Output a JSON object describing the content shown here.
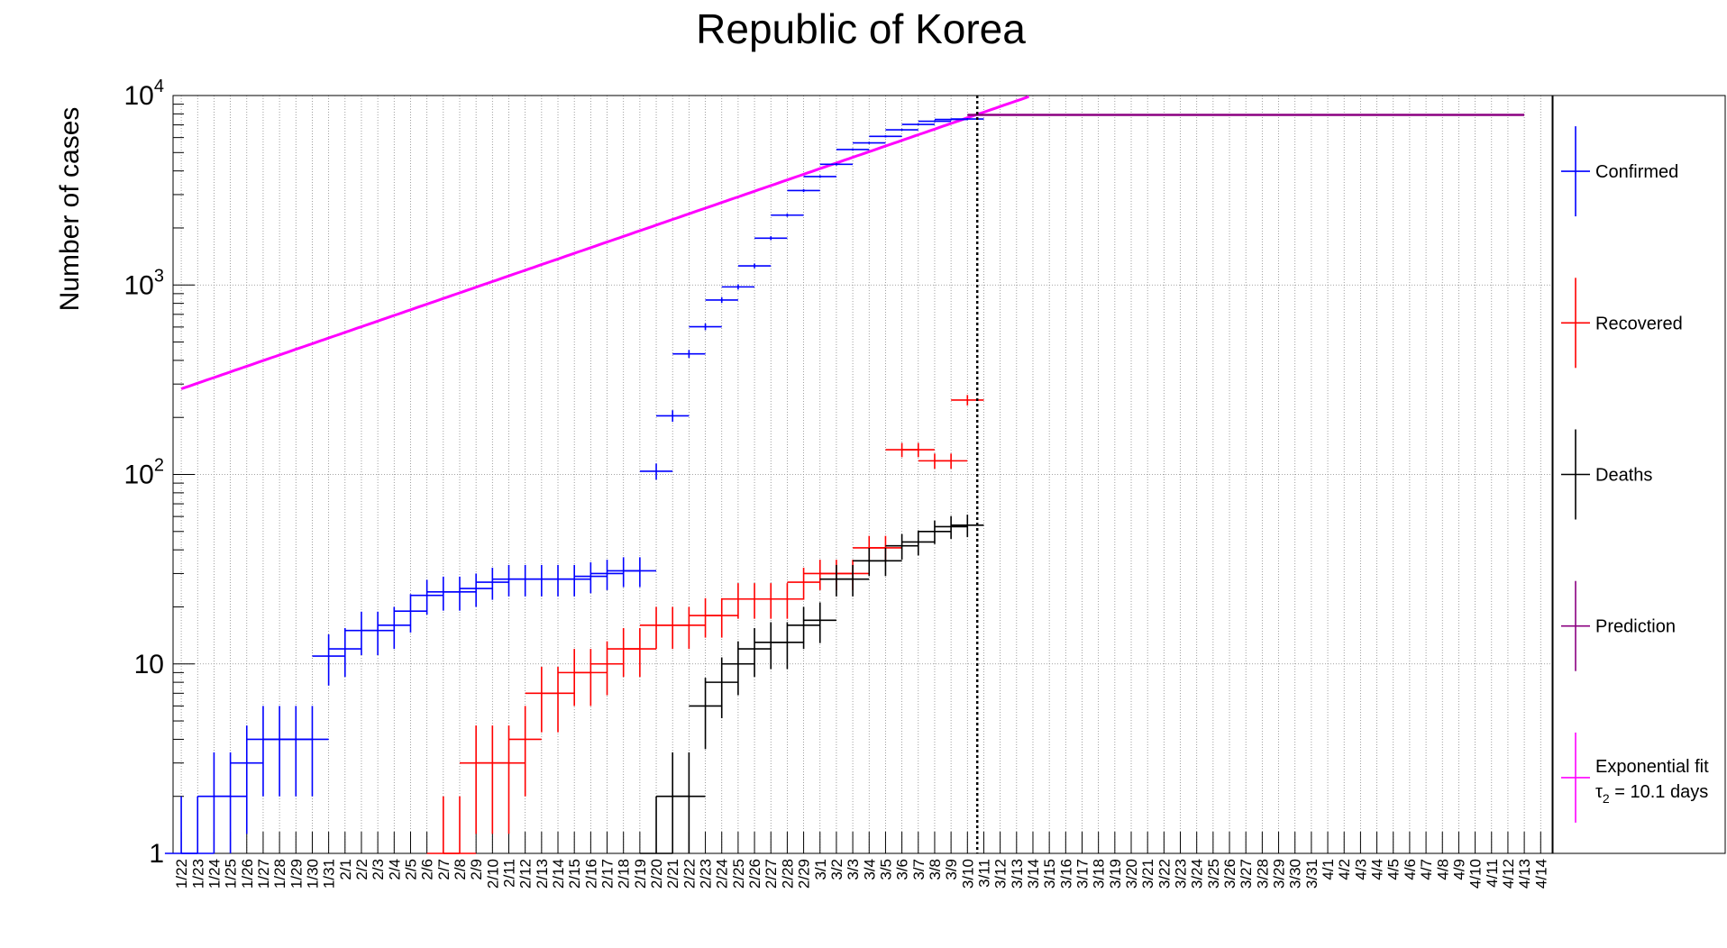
{
  "chart_data": {
    "type": "scatter",
    "title": "Republic of Korea",
    "ylabel": "Number of cases",
    "xlabel": "",
    "yscale": "log",
    "ylim": [
      1,
      10000
    ],
    "y_tick_labels": [
      {
        "value": 1,
        "label": "1"
      },
      {
        "value": 10,
        "label": "10"
      },
      {
        "value": 100,
        "label": "10",
        "exp": "2"
      },
      {
        "value": 1000,
        "label": "10",
        "exp": "3"
      },
      {
        "value": 10000,
        "label": "10",
        "exp": "4"
      }
    ],
    "grid": true,
    "categories": [
      "1/22",
      "1/23",
      "1/24",
      "1/25",
      "1/26",
      "1/27",
      "1/28",
      "1/29",
      "1/30",
      "1/31",
      "2/1",
      "2/2",
      "2/3",
      "2/4",
      "2/5",
      "2/6",
      "2/7",
      "2/8",
      "2/9",
      "2/10",
      "2/11",
      "2/12",
      "2/13",
      "2/14",
      "2/15",
      "2/16",
      "2/17",
      "2/18",
      "2/19",
      "2/20",
      "2/21",
      "2/22",
      "2/23",
      "2/24",
      "2/25",
      "2/26",
      "2/27",
      "2/28",
      "2/29",
      "3/1",
      "3/2",
      "3/3",
      "3/4",
      "3/5",
      "3/6",
      "3/7",
      "3/8",
      "3/9",
      "3/10",
      "3/11",
      "3/12",
      "3/13",
      "3/14",
      "3/15",
      "3/16",
      "3/17",
      "3/18",
      "3/19",
      "3/20",
      "3/21",
      "3/22",
      "3/23",
      "3/24",
      "3/25",
      "3/26",
      "3/27",
      "3/28",
      "3/29",
      "3/30",
      "3/31",
      "4/1",
      "4/2",
      "4/3",
      "4/4",
      "4/5",
      "4/6",
      "4/7",
      "4/8",
      "4/9",
      "4/10",
      "4/11",
      "4/12",
      "4/13",
      "4/14"
    ],
    "series": [
      {
        "name": "Confirmed",
        "color": "#0000ff",
        "values": [
          1,
          1,
          2,
          2,
          3,
          4,
          4,
          4,
          4,
          11,
          12,
          15,
          15,
          16,
          19,
          23,
          24,
          24,
          25,
          27,
          28,
          28,
          28,
          28,
          28,
          29,
          30,
          31,
          31,
          104,
          204,
          433,
          602,
          833,
          977,
          1261,
          1766,
          2337,
          3150,
          3736,
          4335,
          5186,
          5621,
          6088,
          6593,
          7041,
          7314,
          7478,
          7513
        ]
      },
      {
        "name": "Recovered",
        "color": "#ff0000",
        "values": [
          0,
          0,
          0,
          0,
          0,
          0,
          0,
          0,
          0,
          0,
          0,
          0,
          0,
          0,
          0,
          0,
          1,
          1,
          3,
          3,
          3,
          4,
          7,
          7,
          9,
          9,
          10,
          12,
          12,
          16,
          16,
          16,
          18,
          18,
          22,
          22,
          22,
          22,
          27,
          30,
          30,
          30,
          41,
          41,
          135,
          135,
          118,
          118,
          247
        ]
      },
      {
        "name": "Deaths",
        "color": "#000000",
        "values": [
          0,
          0,
          0,
          0,
          0,
          0,
          0,
          0,
          0,
          0,
          0,
          0,
          0,
          0,
          0,
          0,
          0,
          0,
          0,
          0,
          0,
          0,
          0,
          0,
          0,
          0,
          0,
          0,
          0,
          1,
          2,
          2,
          6,
          8,
          10,
          12,
          13,
          13,
          16,
          17,
          28,
          28,
          35,
          35,
          42,
          44,
          50,
          53,
          54
        ]
      },
      {
        "name": "Prediction",
        "color": "#8b0080",
        "start_index": 48,
        "end_index": 82,
        "value": 7900
      },
      {
        "name": "Exponential fit",
        "color": "#ff00ff",
        "start_value": 283,
        "doubling_days": 10.1,
        "start_index": 0
      }
    ],
    "vertical_marker_index": 48,
    "legend": {
      "position": "right",
      "entries": [
        {
          "label": "Confirmed",
          "color": "#0000ff"
        },
        {
          "label": "Recovered",
          "color": "#ff0000"
        },
        {
          "label": "Deaths",
          "color": "#000000"
        },
        {
          "label": "Prediction",
          "color": "#8b0080"
        },
        {
          "label": "Exponential fit",
          "color": "#ff00ff",
          "sub_prefix": "τ",
          "sub": "2",
          "sub_suffix": " = 10.1 days"
        }
      ]
    }
  }
}
